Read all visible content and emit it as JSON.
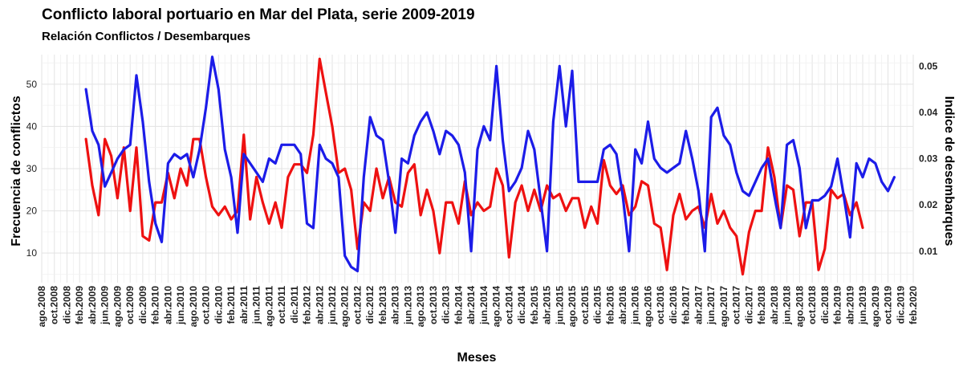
{
  "chart_data": {
    "type": "line",
    "title": "Conflicto laboral portuario en Mar del Plata, serie 2009-2019",
    "subtitle": "Relación Conflictos / Desembarques",
    "xlabel": "Meses",
    "ylabel_left": "Frecuencia de conflictos",
    "ylabel_right": "Indice de desembarques",
    "x_range": [
      "2008-08",
      "2020-02"
    ],
    "ylim_left": [
      3,
      57
    ],
    "ylim_right": [
      0.0032,
      0.0525
    ],
    "y_ticks_left": [
      10,
      20,
      30,
      40,
      50
    ],
    "y_ticks_right": [
      0.01,
      0.02,
      0.03,
      0.04,
      0.05
    ],
    "y_tick_labels_right": [
      "0.01",
      "0.02",
      "0.03",
      "0.04",
      "0.05"
    ],
    "x_tick_labels": [
      "ago.2008",
      "oct.2008",
      "dic.2008",
      "feb.2009",
      "abr.2009",
      "jun.2009",
      "ago.2009",
      "oct.2009",
      "dic.2009",
      "feb.2010",
      "abr.2010",
      "jun.2010",
      "ago.2010",
      "oct.2010",
      "dic.2010",
      "feb.2011",
      "abr.2011",
      "jun.2011",
      "ago.2011",
      "oct.2011",
      "dic.2011",
      "feb.2012",
      "abr.2012",
      "jun.2012",
      "ago.2012",
      "oct.2012",
      "dic.2012",
      "feb.2013",
      "abr.2013",
      "jun.2013",
      "ago.2013",
      "oct.2013",
      "dic.2013",
      "feb.2014",
      "abr.2014",
      "jun.2014",
      "ago.2014",
      "oct.2014",
      "dic.2014",
      "feb.2015",
      "abr.2015",
      "jun.2015",
      "ago.2015",
      "oct.2015",
      "dic.2015",
      "feb.2016",
      "abr.2016",
      "jun.2016",
      "ago.2016",
      "oct.2016",
      "dic.2016",
      "feb.2017",
      "abr.2017",
      "jun.2017",
      "ago.2017",
      "oct.2017",
      "dic.2017",
      "feb.2018",
      "abr.2018",
      "jun.2018",
      "ago.2018",
      "oct.2018",
      "dic.2018",
      "feb.2019",
      "abr.2019",
      "jun.2019",
      "ago.2019",
      "oct.2019",
      "dic.2019",
      "feb.2020"
    ],
    "grid": true,
    "legend": "none",
    "start_month": "2009-03",
    "series": [
      {
        "axis": "left",
        "color": "#ee1111",
        "values": [
          37,
          26,
          19,
          37,
          33,
          23,
          35,
          20,
          35,
          14,
          13,
          22,
          22,
          29,
          23,
          30,
          26,
          37,
          37,
          28,
          21,
          19,
          21,
          18,
          20,
          38,
          18,
          28,
          22,
          17,
          22,
          16,
          28,
          31,
          31,
          29,
          38,
          56,
          48,
          40,
          29,
          30,
          25,
          11,
          22,
          20,
          30,
          23,
          28,
          22,
          21,
          29,
          31,
          19,
          25,
          20,
          10,
          22,
          22,
          17,
          27,
          19,
          22,
          20,
          21,
          30,
          26,
          9,
          22,
          26,
          20,
          25,
          20,
          26,
          23,
          24,
          20,
          23,
          23,
          16,
          21,
          17,
          32,
          26,
          24,
          26,
          19,
          21,
          27,
          26,
          17,
          16,
          6,
          19,
          24,
          18,
          20,
          21,
          16,
          24,
          17,
          20,
          16,
          14,
          5,
          15,
          20,
          20,
          35,
          28,
          16,
          26,
          25,
          14,
          22,
          22,
          6,
          11,
          25,
          23,
          24,
          19,
          22,
          16
        ]
      },
      {
        "axis": "right",
        "color": "#1c1ce8",
        "values": [
          0.045,
          0.036,
          0.033,
          0.024,
          0.027,
          0.03,
          0.032,
          0.033,
          0.048,
          0.038,
          0.025,
          0.016,
          0.012,
          0.029,
          0.031,
          0.03,
          0.031,
          0.026,
          0.032,
          0.041,
          0.052,
          0.045,
          0.032,
          0.026,
          0.014,
          0.031,
          0.029,
          0.027,
          0.025,
          0.03,
          0.029,
          0.033,
          0.033,
          0.033,
          0.031,
          0.016,
          0.015,
          0.033,
          0.03,
          0.029,
          0.026,
          0.009,
          0.0066,
          0.0057,
          0.026,
          0.039,
          0.035,
          0.034,
          0.025,
          0.014,
          0.03,
          0.029,
          0.035,
          0.038,
          0.04,
          0.036,
          0.031,
          0.036,
          0.035,
          0.033,
          0.027,
          0.01,
          0.032,
          0.037,
          0.034,
          0.05,
          0.034,
          0.023,
          0.025,
          0.028,
          0.036,
          0.032,
          0.021,
          0.01,
          0.038,
          0.05,
          0.037,
          0.049,
          0.025,
          0.025,
          0.025,
          0.025,
          0.032,
          0.033,
          0.031,
          0.022,
          0.01,
          0.032,
          0.029,
          0.038,
          0.03,
          0.028,
          0.027,
          0.028,
          0.029,
          0.036,
          0.03,
          0.023,
          0.01,
          0.039,
          0.041,
          0.035,
          0.033,
          0.027,
          0.023,
          0.022,
          0.025,
          0.028,
          0.03,
          0.022,
          0.015,
          0.033,
          0.034,
          0.028,
          0.015,
          0.021,
          0.021,
          0.022,
          0.024,
          0.03,
          0.022,
          0.013,
          0.029,
          0.026,
          0.03,
          0.029,
          0.025,
          0.023,
          0.026
        ]
      }
    ]
  }
}
